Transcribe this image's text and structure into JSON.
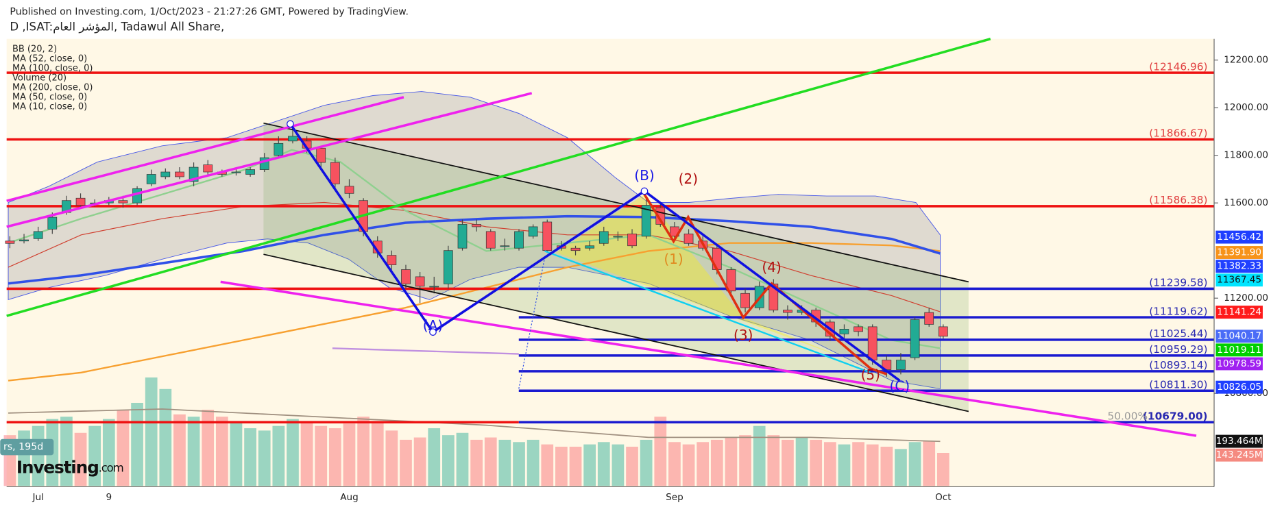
{
  "chart_data": {
    "type": "candlestick",
    "published": "Published on Investing.com, 1/Oct/2023 - 21:27:26 GMT, Powered by TradingView.",
    "title": "D ,ISAT:المؤشر العام, Tadawul All Share,",
    "indicators": [
      "BB (20, 2)",
      "MA (52, close, 0)",
      "MA (100, close, 0)",
      "Volume (20)",
      "MA (200, close, 0)",
      "MA (50, close, 0)",
      "MA (10, close, 0)"
    ],
    "categories": [
      null,
      null,
      "Jul",
      null,
      null,
      null,
      null,
      "9",
      null,
      null,
      null,
      null,
      null,
      null,
      null,
      null,
      null,
      null,
      null,
      null,
      null,
      null,
      null,
      null,
      "Aug",
      null,
      null,
      null,
      null,
      null,
      null,
      null,
      null,
      null,
      null,
      null,
      null,
      null,
      null,
      null,
      null,
      null,
      null,
      null,
      null,
      null,
      null,
      "Sep",
      null,
      null,
      null,
      null,
      null,
      null,
      null,
      null,
      null,
      null,
      null,
      null,
      null,
      null,
      null,
      null,
      null,
      null,
      "Oct"
    ],
    "open": [
      11440,
      11440,
      11450,
      11490,
      11560,
      11620,
      11600,
      11600,
      11610,
      11600,
      11680,
      11710,
      11730,
      11690,
      11760,
      11730,
      11730,
      11720,
      11740,
      11800,
      11860,
      11860,
      11830,
      11770,
      11670,
      11610,
      11440,
      11380,
      11320,
      11290,
      11250,
      11260,
      11410,
      11510,
      11480,
      11420,
      11410,
      11460,
      11520,
      11420,
      11410,
      11410,
      11430,
      11460,
      11470,
      11460,
      11580,
      11500,
      11470,
      11440,
      11410,
      11320,
      11220,
      11160,
      11260,
      11150,
      11140,
      11150,
      11100,
      11050,
      11080,
      11080,
      10940,
      10900,
      10950,
      11140,
      11080
    ],
    "high": [
      11460,
      11470,
      11500,
      11560,
      11630,
      11640,
      11615,
      11625,
      11630,
      11670,
      11740,
      11745,
      11750,
      11770,
      11780,
      11740,
      11745,
      11750,
      11810,
      11880,
      11910,
      11880,
      11840,
      11790,
      11700,
      11620,
      11460,
      11400,
      11340,
      11310,
      11290,
      11420,
      11530,
      11530,
      11490,
      11450,
      11490,
      11510,
      11530,
      11440,
      11420,
      11440,
      11500,
      11480,
      11490,
      11620,
      11600,
      11520,
      11490,
      11460,
      11420,
      11330,
      11240,
      11270,
      11280,
      11170,
      11170,
      11160,
      11110,
      11090,
      11090,
      11090,
      10960,
      10970,
      11120,
      11160,
      11090
    ],
    "low": [
      11410,
      11430,
      11440,
      11470,
      11550,
      11580,
      11585,
      11590,
      11580,
      11590,
      11670,
      11700,
      11700,
      11670,
      11720,
      11710,
      11715,
      11710,
      11730,
      11790,
      11850,
      11810,
      11750,
      11660,
      11620,
      11460,
      11370,
      11320,
      11240,
      11180,
      11220,
      11240,
      11400,
      11480,
      11400,
      11400,
      11400,
      11450,
      11390,
      11400,
      11380,
      11400,
      11420,
      11440,
      11410,
      11450,
      11500,
      11440,
      11420,
      11400,
      11300,
      11210,
      11140,
      11150,
      11140,
      11110,
      11130,
      11080,
      11020,
      11030,
      11040,
      10920,
      10870,
      10880,
      10940,
      11080,
      11030
    ],
    "close": [
      11430,
      11445,
      11480,
      11540,
      11610,
      11590,
      11600,
      11610,
      11600,
      11660,
      11720,
      11730,
      11710,
      11750,
      11730,
      11720,
      11730,
      11740,
      11790,
      11850,
      11880,
      11830,
      11770,
      11680,
      11640,
      11480,
      11390,
      11340,
      11260,
      11250,
      11250,
      11400,
      11510,
      11500,
      11410,
      11420,
      11480,
      11500,
      11400,
      11410,
      11400,
      11420,
      11480,
      11460,
      11420,
      11590,
      11510,
      11460,
      11430,
      11410,
      11320,
      11230,
      11160,
      11250,
      11150,
      11140,
      11150,
      11100,
      11040,
      11070,
      11060,
      10940,
      10900,
      10940,
      11110,
      11090,
      11040
    ],
    "volume": [
      220,
      240,
      260,
      290,
      300,
      230,
      260,
      290,
      330,
      360,
      470,
      420,
      310,
      300,
      330,
      300,
      280,
      250,
      240,
      260,
      290,
      280,
      260,
      250,
      270,
      300,
      280,
      240,
      200,
      210,
      250,
      220,
      230,
      200,
      210,
      200,
      190,
      200,
      180,
      170,
      170,
      180,
      190,
      180,
      170,
      200,
      300,
      190,
      180,
      190,
      200,
      210,
      220,
      260,
      220,
      200,
      210,
      200,
      190,
      180,
      190,
      180,
      170,
      160,
      190,
      195,
      143.245
    ],
    "up_color": "#22ab94",
    "down_color": "#f7525f",
    "ylim": [
      10408,
      12289
    ],
    "yticks": [
      {
        "value": 10800,
        "label": "10800.00"
      },
      {
        "value": 11200,
        "label": "11200.00"
      },
      {
        "value": 11600,
        "label": "11600.00"
      },
      {
        "value": 11800,
        "label": "11800.00"
      },
      {
        "value": 12000,
        "label": "12000.00"
      },
      {
        "value": 12200,
        "label": "12200.00"
      }
    ],
    "levels": [
      {
        "value": 12146.96,
        "label": "(12146.96)",
        "color": "#ee1111"
      },
      {
        "value": 11866.67,
        "label": "(11866.67)",
        "color": "#ee1111"
      },
      {
        "value": 11586.38,
        "label": "(11586.38)",
        "color": "#ee1111"
      },
      {
        "value": 11239.58,
        "label": "(11239.58)",
        "color": "#1a1ad0",
        "left_color": "#ee1111"
      },
      {
        "value": 11119.62,
        "label": "(11119.62)",
        "color": "#1a1ad0"
      },
      {
        "value": 11025.44,
        "label": "(11025.44)",
        "color": "#1a1ad0"
      },
      {
        "value": 10959.29,
        "label": "(10959.29)",
        "color": "#1a1ad0"
      },
      {
        "value": 10893.14,
        "label": "(10893.14)",
        "color": "#1a1ad0"
      },
      {
        "value": 10811.3,
        "label": "(10811.30)",
        "color": "#1a1ad0"
      },
      {
        "value": 10679,
        "label": "(10679.00)",
        "color": "#1a1ad0",
        "left_color": "#ee1111"
      }
    ],
    "fib_label": "50.00%",
    "price_badges": [
      {
        "value": 11456.42,
        "label": "11456.42",
        "color": "#1f3fff"
      },
      {
        "value": 11391.9,
        "label": "11391.90",
        "color": "#f7931a"
      },
      {
        "value": 11382.33,
        "label": "11382.33",
        "color": "#2040ff"
      },
      {
        "value": 11367.45,
        "label": "11367.45",
        "color": "#00e5ff"
      },
      {
        "value": 11141.24,
        "label": "11141.24",
        "color": "#ff1a1a"
      },
      {
        "value": 11040.17,
        "label": "11040.17",
        "color": "#4a6cf7"
      },
      {
        "value": 11019.11,
        "label": "11019.11",
        "color": "#00d000"
      },
      {
        "value": 10978.59,
        "label": "10978.59",
        "color": "#a020f0"
      },
      {
        "value": 10826.05,
        "label": "10826.05",
        "color": "#1f3fff"
      }
    ],
    "volume_badges": [
      {
        "value": 193.464,
        "label": "193.464M",
        "color": "#111111"
      },
      {
        "value": 143.245,
        "label": "143.245M",
        "color": "#f58a80"
      }
    ],
    "annotations": [
      {
        "text": "(A)",
        "color": "#1a1ae6"
      },
      {
        "text": "(B)",
        "color": "#1a1ae6"
      },
      {
        "text": "(C)",
        "color": "#1a1ae6"
      },
      {
        "text": "(1)",
        "color": "#e08a20"
      },
      {
        "text": "(2)",
        "color": "#b01010"
      },
      {
        "text": "(3)",
        "color": "#b01010"
      },
      {
        "text": "(4)",
        "color": "#b01010"
      },
      {
        "text": "(5)",
        "color": "#b01010"
      }
    ],
    "volume_label": "rs, 195d",
    "logo": "Investing",
    "logo_suffix": ".com"
  }
}
